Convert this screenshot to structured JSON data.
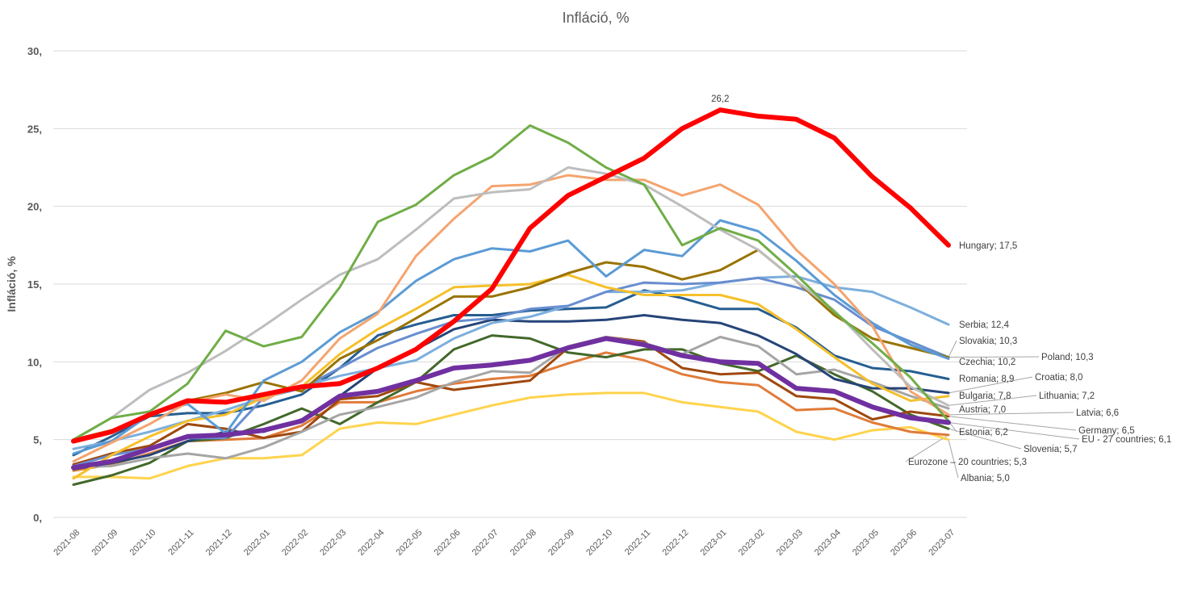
{
  "chart_data": {
    "type": "line",
    "title": "Infláció, %",
    "xlabel": "",
    "ylabel": "Infláció, %",
    "ylim": [
      0,
      30
    ],
    "yticks": [
      0,
      5,
      10,
      15,
      20,
      25,
      30
    ],
    "ytick_labels": [
      "0,",
      "5,",
      "10,",
      "15,",
      "20,",
      "25,",
      "30,"
    ],
    "grid": true,
    "legend": "none (end-of-line data labels)",
    "categories": [
      "2021-08",
      "2021-09",
      "2021-10",
      "2021-11",
      "2021-12",
      "2022-01",
      "2022-02",
      "2022-03",
      "2022-04",
      "2022-05",
      "2022-06",
      "2022-07",
      "2022-08",
      "2022-09",
      "2022-10",
      "2022-11",
      "2022-12",
      "2023-01",
      "2023-02",
      "2023-03",
      "2023-04",
      "2023-05",
      "2023-06",
      "2023-07"
    ],
    "annotations": [
      {
        "series": "Hungary",
        "category": "2023-01",
        "text": "26,2"
      }
    ],
    "series": [
      {
        "name": "Albania",
        "end_label": "Albania;  5,0",
        "color": "#FFD34D",
        "width": 3,
        "values": [
          2.6,
          2.6,
          2.5,
          3.3,
          3.8,
          3.8,
          4.0,
          5.7,
          6.1,
          6.0,
          6.6,
          7.2,
          7.7,
          7.9,
          8.0,
          8.0,
          7.4,
          7.1,
          6.8,
          5.5,
          5.0,
          5.6,
          5.8,
          5.0
        ]
      },
      {
        "name": "Eurozone – 20 countries",
        "end_label": "Eurozone – 20 countries;  5,3",
        "color": "#E07B39",
        "width": 3,
        "values": [
          3.0,
          3.4,
          4.1,
          4.9,
          5.0,
          5.1,
          5.9,
          7.4,
          7.4,
          8.1,
          8.6,
          8.9,
          9.1,
          9.9,
          10.6,
          10.1,
          9.2,
          8.7,
          8.5,
          6.9,
          7.0,
          6.1,
          5.5,
          5.3
        ]
      },
      {
        "name": "Slovenia",
        "end_label": "Slovenia;  5,7",
        "color": "#43682B",
        "width": 3,
        "values": [
          2.1,
          2.7,
          3.5,
          4.9,
          5.1,
          6.0,
          7.0,
          6.0,
          7.4,
          8.7,
          10.8,
          11.7,
          11.5,
          10.6,
          10.3,
          10.8,
          10.8,
          9.9,
          9.4,
          10.4,
          9.2,
          8.1,
          6.6,
          5.7
        ]
      },
      {
        "name": "Germany",
        "end_label": "Germany;  6,5",
        "color": "#9E480E",
        "width": 3,
        "values": [
          3.4,
          4.1,
          4.6,
          6.0,
          5.7,
          5.1,
          5.5,
          7.6,
          7.8,
          8.7,
          8.2,
          8.5,
          8.8,
          10.9,
          11.6,
          11.3,
          9.6,
          9.2,
          9.3,
          7.8,
          7.6,
          6.3,
          6.8,
          6.5
        ]
      },
      {
        "name": "Austria",
        "end_label": "Austria;  7,0",
        "color": "#A5A5A5",
        "width": 3,
        "values": [
          3.2,
          3.3,
          3.8,
          4.1,
          3.8,
          4.5,
          5.5,
          6.6,
          7.1,
          7.7,
          8.7,
          9.4,
          9.3,
          11.0,
          11.6,
          11.2,
          10.5,
          11.6,
          11.0,
          9.2,
          9.5,
          8.7,
          7.8,
          7.0
        ]
      },
      {
        "name": "Croatia",
        "end_label": "Croatia;  8,0",
        "color": "#264478",
        "width": 3,
        "values": [
          3.1,
          3.5,
          4.0,
          4.9,
          5.5,
          5.5,
          6.3,
          7.8,
          9.6,
          10.8,
          12.1,
          12.7,
          12.6,
          12.6,
          12.7,
          13.0,
          12.7,
          12.5,
          11.7,
          10.5,
          8.9,
          8.3,
          8.3,
          8.0
        ]
      },
      {
        "name": "Romania",
        "end_label": "Romania;  8,9",
        "color": "#255E91",
        "width": 3,
        "values": [
          4.0,
          5.2,
          6.5,
          6.7,
          6.7,
          7.2,
          7.9,
          9.6,
          11.7,
          12.4,
          13.0,
          13.0,
          13.3,
          13.4,
          13.5,
          14.6,
          14.1,
          13.4,
          13.4,
          12.2,
          10.4,
          9.6,
          9.4,
          8.9
        ]
      },
      {
        "name": "Serbia",
        "end_label": "Serbia;  12,4",
        "color": "#7CAFDD",
        "width": 3,
        "values": [
          4.4,
          4.9,
          5.5,
          6.2,
          6.9,
          7.7,
          8.4,
          9.1,
          9.6,
          10.1,
          11.5,
          12.5,
          12.9,
          13.6,
          14.5,
          14.5,
          14.6,
          15.1,
          15.4,
          15.5,
          14.8,
          14.5,
          13.5,
          12.4
        ]
      },
      {
        "name": "Slovakia",
        "end_label": "Slovakia;  10,3",
        "color": "#698ED0",
        "width": 3,
        "values": [
          3.3,
          4.0,
          4.4,
          5.1,
          5.1,
          7.7,
          8.3,
          9.6,
          10.9,
          11.8,
          12.6,
          12.8,
          13.4,
          13.6,
          14.5,
          15.1,
          15.0,
          15.1,
          15.4,
          14.8,
          14.0,
          12.3,
          11.3,
          10.3
        ]
      },
      {
        "name": "Bulgaria",
        "end_label": "Bulgaria;  7,8",
        "color": "#F5C02B",
        "width": 3,
        "values": [
          2.5,
          4.0,
          5.2,
          6.2,
          6.6,
          7.7,
          8.4,
          10.5,
          12.1,
          13.4,
          14.8,
          14.9,
          15.0,
          15.6,
          14.8,
          14.3,
          14.3,
          14.3,
          13.7,
          12.1,
          10.3,
          8.6,
          7.5,
          7.8
        ]
      },
      {
        "name": "Poland",
        "end_label": "Poland;  10,3",
        "color": "#997300",
        "width": 3,
        "values": [
          5.0,
          5.6,
          6.5,
          7.5,
          8.0,
          8.7,
          8.1,
          10.2,
          11.4,
          12.8,
          14.2,
          14.2,
          14.8,
          15.7,
          16.4,
          16.1,
          15.3,
          15.9,
          17.2,
          15.2,
          13.0,
          11.5,
          10.9,
          10.3
        ]
      },
      {
        "name": "Czechia",
        "end_label": "Czechia;  10,2",
        "color": "#5B9BD5",
        "width": 3,
        "values": [
          4.1,
          4.9,
          6.6,
          7.3,
          5.4,
          8.8,
          10.0,
          11.9,
          13.2,
          15.2,
          16.6,
          17.3,
          17.1,
          17.8,
          15.5,
          17.2,
          16.8,
          19.1,
          18.4,
          16.5,
          14.3,
          12.5,
          11.1,
          10.2
        ]
      },
      {
        "name": "Latvia",
        "end_label": "Latvia;  6,6",
        "color": "#F4A46F",
        "width": 3,
        "values": [
          3.6,
          4.8,
          6.0,
          7.4,
          7.9,
          7.5,
          8.8,
          11.5,
          13.1,
          16.8,
          19.2,
          21.3,
          21.4,
          22.0,
          21.7,
          21.7,
          20.7,
          21.4,
          20.1,
          17.2,
          15.0,
          12.3,
          8.1,
          6.6
        ]
      },
      {
        "name": "Lithuania",
        "end_label": "Lithuania;  7,2",
        "color": "#BDBDBD",
        "width": 3,
        "values": [
          5.0,
          6.4,
          8.2,
          9.3,
          10.7,
          12.3,
          14.0,
          15.6,
          16.6,
          18.5,
          20.5,
          20.9,
          21.1,
          22.5,
          22.1,
          21.4,
          20.0,
          18.5,
          17.2,
          15.2,
          13.3,
          10.8,
          8.4,
          7.2
        ]
      },
      {
        "name": "Estonia",
        "end_label": "Estonia;  6,2",
        "color": "#70AD47",
        "width": 3,
        "values": [
          5.0,
          6.4,
          6.8,
          8.6,
          12.0,
          11.0,
          11.6,
          14.8,
          19.0,
          20.1,
          22.0,
          23.2,
          25.2,
          24.1,
          22.5,
          21.4,
          17.5,
          18.6,
          17.8,
          15.6,
          13.2,
          11.2,
          9.0,
          6.2
        ]
      },
      {
        "name": "EU - 27 countries",
        "end_label": "EU - 27 countries;  6,1",
        "color": "#7030A0",
        "width": 6,
        "values": [
          3.2,
          3.6,
          4.4,
          5.2,
          5.3,
          5.6,
          6.2,
          7.8,
          8.1,
          8.8,
          9.6,
          9.8,
          10.1,
          10.9,
          11.5,
          11.1,
          10.4,
          10.0,
          9.9,
          8.3,
          8.1,
          7.1,
          6.4,
          6.1
        ]
      },
      {
        "name": "Hungary",
        "end_label": "Hungary;  17,5",
        "color": "#FF0000",
        "width": 6,
        "values": [
          4.9,
          5.5,
          6.6,
          7.5,
          7.4,
          7.9,
          8.4,
          8.6,
          9.6,
          10.8,
          12.6,
          14.7,
          18.6,
          20.7,
          21.9,
          23.1,
          25.0,
          26.2,
          25.8,
          25.6,
          24.4,
          21.9,
          19.9,
          17.5
        ]
      }
    ]
  }
}
